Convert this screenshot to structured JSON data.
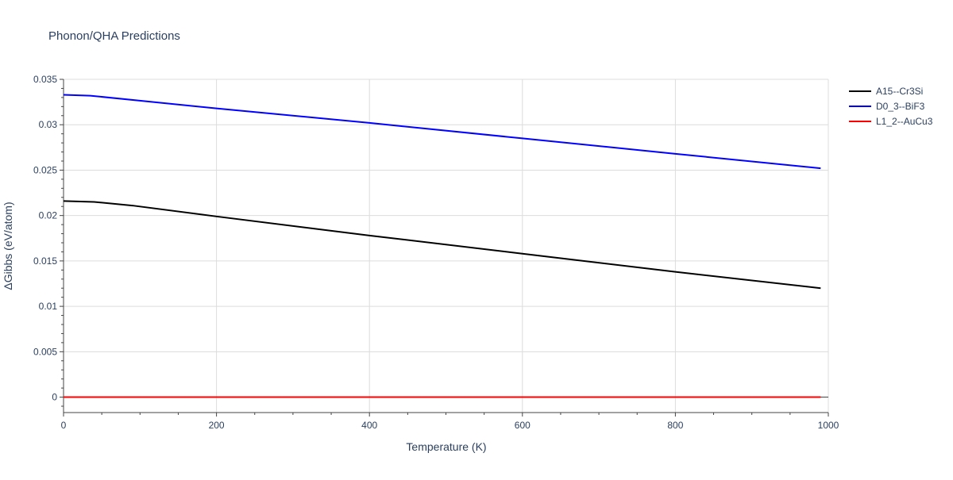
{
  "chart_data": {
    "type": "line",
    "title": "Phonon/QHA Predictions",
    "xlabel": "Temperature (K)",
    "ylabel": "ΔGibbs (eV/atom)",
    "xlim": [
      0,
      1000
    ],
    "ylim": [
      -0.0017,
      0.035
    ],
    "x_ticks": [
      0,
      200,
      400,
      600,
      800,
      1000
    ],
    "x_tick_labels": [
      "0",
      "200",
      "400",
      "600",
      "800",
      "1000"
    ],
    "y_ticks": [
      0,
      0.005,
      0.01,
      0.015,
      0.02,
      0.025,
      0.03,
      0.035
    ],
    "y_tick_labels": [
      "0",
      "0.005",
      "0.01",
      "0.015",
      "0.02",
      "0.025",
      "0.03",
      "0.035"
    ],
    "grid": true,
    "legend_position": "top-right",
    "series": [
      {
        "name": "A15--Cr3Si",
        "color": "#000000",
        "x": [
          0,
          40,
          90,
          200,
          400,
          600,
          800,
          990
        ],
        "y": [
          0.0216,
          0.0215,
          0.0211,
          0.0199,
          0.0178,
          0.0158,
          0.0138,
          0.012
        ]
      },
      {
        "name": "D0_3--BiF3",
        "color": "#0000ff",
        "x": [
          0,
          35,
          200,
          400,
          600,
          800,
          990
        ],
        "y": [
          0.0333,
          0.0332,
          0.0318,
          0.0302,
          0.0285,
          0.0268,
          0.0252
        ]
      },
      {
        "name": "L1_2--AuCu3",
        "color": "#ff0000",
        "x": [
          0,
          990
        ],
        "y": [
          0,
          0
        ]
      }
    ]
  }
}
